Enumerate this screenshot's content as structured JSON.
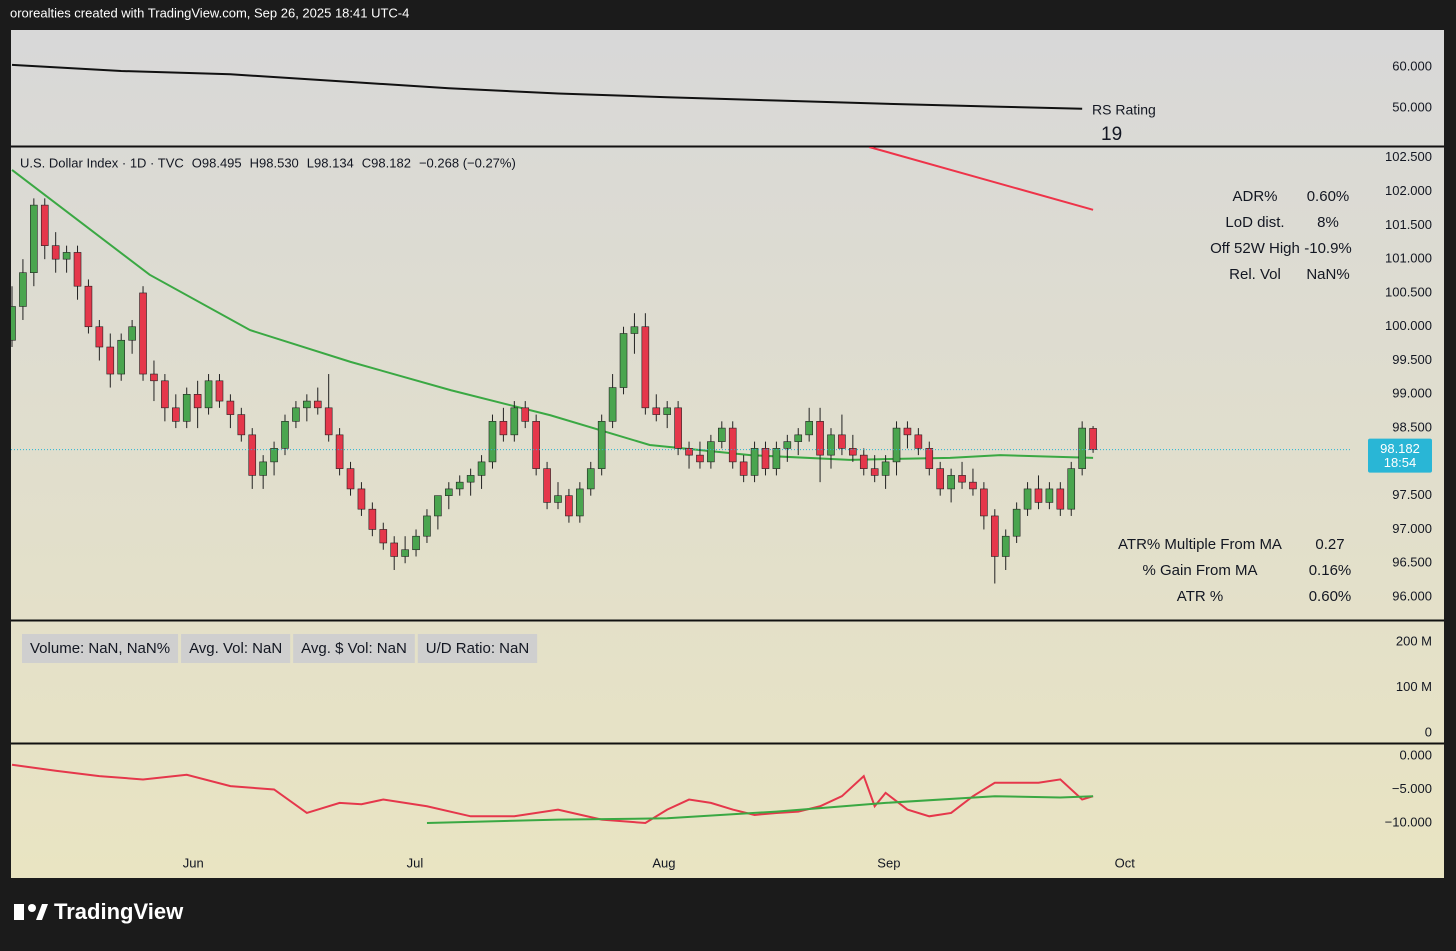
{
  "header": "ororealties created with TradingView.com, Sep 26, 2025 18:41 UTC-4",
  "footer_logo": "TradingView",
  "chart_data": [
    {
      "type": "line",
      "ylim": [
        40.7,
        69.0
      ],
      "yticks": [
        {
          "value": 60,
          "label": "60.000"
        },
        {
          "value": 50,
          "label": "50.000"
        }
      ],
      "series": [
        {
          "name": "RS Rating",
          "color": "#111111",
          "x": [
            0,
            10,
            20,
            30,
            40,
            50,
            60,
            70,
            80,
            90,
            98
          ],
          "values": [
            60.5,
            59.0,
            58.2,
            56.5,
            54.8,
            53.5,
            52.6,
            51.8,
            51.0,
            50.3,
            49.8
          ]
        }
      ],
      "rating": 19
    },
    {
      "type": "candlestick",
      "legend": {
        "symbol": "U.S. Dollar Index · 1D · TVC",
        "open": "O98.495",
        "high": "H98.530",
        "low": "L98.134",
        "close": "C98.182",
        "change": "−0.268 (−0.27%)"
      },
      "up_color": "#4aa54f",
      "down_color": "#e5374b",
      "ylim": [
        95.66,
        102.66
      ],
      "yticks": [
        {
          "value": 102.5,
          "label": "102.500"
        },
        {
          "value": 102,
          "label": "102.000"
        },
        {
          "value": 101.5,
          "label": "101.500"
        },
        {
          "value": 101,
          "label": "101.000"
        },
        {
          "value": 100.5,
          "label": "100.500"
        },
        {
          "value": 100,
          "label": "100.000"
        },
        {
          "value": 99.5,
          "label": "99.500"
        },
        {
          "value": 99,
          "label": "99.000"
        },
        {
          "value": 98.5,
          "label": "98.500"
        },
        {
          "value": 98,
          "label": "98.000"
        },
        {
          "value": 97.5,
          "label": "97.500"
        },
        {
          "value": 97,
          "label": "97.000"
        },
        {
          "value": 96.5,
          "label": "96.500"
        },
        {
          "value": 96,
          "label": "96.000"
        }
      ],
      "xticks": [
        {
          "value": 16.6,
          "label": "Jun"
        },
        {
          "value": 36.9,
          "label": "Jul"
        },
        {
          "value": 59.7,
          "label": "Aug"
        },
        {
          "value": 80.3,
          "label": "Sep"
        },
        {
          "value": 101.9,
          "label": "Oct"
        }
      ],
      "last_price": 98.182,
      "countdown": "18:54",
      "candles": [
        [
          99.8,
          100.6,
          99.7,
          100.3
        ],
        [
          100.3,
          101.0,
          100.1,
          100.8
        ],
        [
          100.8,
          101.9,
          100.6,
          101.8
        ],
        [
          101.8,
          101.9,
          101.0,
          101.2
        ],
        [
          101.2,
          101.4,
          100.8,
          101.0
        ],
        [
          101.0,
          101.2,
          100.8,
          101.1
        ],
        [
          101.1,
          101.2,
          100.4,
          100.6
        ],
        [
          100.6,
          100.7,
          99.9,
          100.0
        ],
        [
          100.0,
          100.1,
          99.5,
          99.7
        ],
        [
          99.7,
          99.9,
          99.1,
          99.3
        ],
        [
          99.3,
          99.9,
          99.2,
          99.8
        ],
        [
          99.8,
          100.1,
          99.6,
          100.0
        ],
        [
          100.5,
          100.6,
          99.2,
          99.3
        ],
        [
          99.3,
          99.5,
          98.9,
          99.2
        ],
        [
          99.2,
          99.3,
          98.6,
          98.8
        ],
        [
          98.8,
          99.0,
          98.5,
          98.6
        ],
        [
          98.6,
          99.1,
          98.5,
          99.0
        ],
        [
          99.0,
          99.2,
          98.5,
          98.8
        ],
        [
          98.8,
          99.3,
          98.7,
          99.2
        ],
        [
          99.2,
          99.3,
          98.8,
          98.9
        ],
        [
          98.9,
          99.0,
          98.5,
          98.7
        ],
        [
          98.7,
          98.8,
          98.3,
          98.4
        ],
        [
          98.4,
          98.5,
          97.6,
          97.8
        ],
        [
          97.8,
          98.1,
          97.6,
          98.0
        ],
        [
          98.0,
          98.3,
          97.8,
          98.2
        ],
        [
          98.2,
          98.7,
          98.1,
          98.6
        ],
        [
          98.6,
          98.9,
          98.5,
          98.8
        ],
        [
          98.8,
          99.0,
          98.6,
          98.9
        ],
        [
          98.9,
          99.1,
          98.7,
          98.8
        ],
        [
          98.8,
          99.3,
          98.3,
          98.4
        ],
        [
          98.4,
          98.5,
          97.8,
          97.9
        ],
        [
          97.9,
          98.0,
          97.5,
          97.6
        ],
        [
          97.6,
          97.7,
          97.2,
          97.3
        ],
        [
          97.3,
          97.4,
          96.9,
          97.0
        ],
        [
          97.0,
          97.1,
          96.7,
          96.8
        ],
        [
          96.8,
          96.9,
          96.4,
          96.6
        ],
        [
          96.6,
          96.9,
          96.5,
          96.7
        ],
        [
          96.7,
          97.0,
          96.6,
          96.9
        ],
        [
          96.9,
          97.3,
          96.8,
          97.2
        ],
        [
          97.2,
          97.5,
          97.0,
          97.5
        ],
        [
          97.5,
          97.7,
          97.3,
          97.6
        ],
        [
          97.6,
          97.8,
          97.5,
          97.7
        ],
        [
          97.7,
          97.9,
          97.5,
          97.8
        ],
        [
          97.8,
          98.1,
          97.6,
          98.0
        ],
        [
          98.0,
          98.7,
          97.9,
          98.6
        ],
        [
          98.6,
          98.8,
          98.3,
          98.4
        ],
        [
          98.4,
          98.9,
          98.3,
          98.8
        ],
        [
          98.8,
          98.9,
          98.5,
          98.6
        ],
        [
          98.6,
          98.7,
          97.8,
          97.9
        ],
        [
          97.9,
          98.0,
          97.3,
          97.4
        ],
        [
          97.4,
          97.7,
          97.3,
          97.5
        ],
        [
          97.5,
          97.6,
          97.1,
          97.2
        ],
        [
          97.2,
          97.7,
          97.1,
          97.6
        ],
        [
          97.6,
          98.0,
          97.5,
          97.9
        ],
        [
          97.9,
          98.7,
          97.8,
          98.6
        ],
        [
          98.6,
          99.3,
          98.5,
          99.1
        ],
        [
          99.1,
          100.0,
          99.0,
          99.9
        ],
        [
          99.9,
          100.2,
          99.6,
          100.0
        ],
        [
          100.0,
          100.2,
          98.7,
          98.8
        ],
        [
          98.8,
          99.0,
          98.6,
          98.7
        ],
        [
          98.7,
          98.9,
          98.5,
          98.8
        ],
        [
          98.8,
          98.9,
          98.1,
          98.2
        ],
        [
          98.2,
          98.3,
          97.9,
          98.1
        ],
        [
          98.1,
          98.3,
          97.9,
          98.0
        ],
        [
          98.0,
          98.4,
          97.9,
          98.3
        ],
        [
          98.3,
          98.6,
          98.2,
          98.5
        ],
        [
          98.5,
          98.6,
          97.9,
          98.0
        ],
        [
          98.0,
          98.1,
          97.7,
          97.8
        ],
        [
          97.8,
          98.3,
          97.7,
          98.2
        ],
        [
          98.2,
          98.3,
          97.8,
          97.9
        ],
        [
          97.9,
          98.3,
          97.8,
          98.2
        ],
        [
          98.2,
          98.4,
          98.0,
          98.3
        ],
        [
          98.3,
          98.5,
          98.1,
          98.4
        ],
        [
          98.4,
          98.8,
          98.3,
          98.6
        ],
        [
          98.6,
          98.8,
          97.7,
          98.1
        ],
        [
          98.1,
          98.5,
          97.9,
          98.4
        ],
        [
          98.4,
          98.7,
          98.1,
          98.2
        ],
        [
          98.2,
          98.4,
          98.0,
          98.1
        ],
        [
          98.1,
          98.2,
          97.8,
          97.9
        ],
        [
          97.9,
          98.1,
          97.7,
          97.8
        ],
        [
          97.8,
          98.1,
          97.6,
          98.0
        ],
        [
          98.0,
          98.6,
          97.8,
          98.5
        ],
        [
          98.5,
          98.6,
          98.2,
          98.4
        ],
        [
          98.4,
          98.5,
          98.1,
          98.2
        ],
        [
          98.2,
          98.3,
          97.8,
          97.9
        ],
        [
          97.9,
          98.0,
          97.5,
          97.6
        ],
        [
          97.6,
          97.9,
          97.4,
          97.8
        ],
        [
          97.8,
          98.0,
          97.6,
          97.7
        ],
        [
          97.7,
          97.9,
          97.5,
          97.6
        ],
        [
          97.6,
          97.7,
          97.0,
          97.2
        ],
        [
          97.2,
          97.3,
          96.2,
          96.6
        ],
        [
          96.6,
          97.0,
          96.4,
          96.9
        ],
        [
          96.9,
          97.4,
          96.8,
          97.3
        ],
        [
          97.3,
          97.7,
          97.2,
          97.6
        ],
        [
          97.6,
          97.8,
          97.3,
          97.4
        ],
        [
          97.4,
          97.7,
          97.3,
          97.6
        ],
        [
          97.6,
          97.7,
          97.2,
          97.3
        ],
        [
          97.3,
          98.0,
          97.2,
          97.9
        ],
        [
          97.9,
          98.6,
          97.8,
          98.5
        ],
        [
          98.495,
          98.53,
          98.134,
          98.182
        ]
      ],
      "lines": [
        {
          "color": "#3aa843",
          "x": [
            0,
            12.6,
            21.8,
            31,
            40.2,
            49.3,
            58.4,
            67.6,
            76.7,
            85.9,
            90.5,
            99
          ],
          "values": [
            102.32,
            100.77,
            99.95,
            99.48,
            99.06,
            98.69,
            98.25,
            98.1,
            98.03,
            98.06,
            98.1,
            98.06
          ]
        },
        {
          "color": "#ee3349",
          "x": [
            78.5,
            99
          ],
          "values": [
            102.66,
            101.73
          ]
        }
      ],
      "stats_top": [
        [
          "ADR%",
          "0.60%"
        ],
        [
          "LoD dist.",
          "8%"
        ],
        [
          "Off 52W High",
          "-10.9%"
        ],
        [
          "Rel. Vol",
          "NaN%"
        ]
      ],
      "stats_bottom": [
        [
          "ATR% Multiple From MA",
          "0.27"
        ],
        [
          "% Gain From MA",
          "0.16%"
        ],
        [
          "ATR %",
          "0.60%"
        ]
      ]
    },
    {
      "type": "volume",
      "ylim": [
        -22000000,
        246000000
      ],
      "yticks": [
        {
          "value": 200000000,
          "label": "200 M"
        },
        {
          "value": 100000000,
          "label": "100 M"
        },
        0
      ],
      "stats": [
        "Volume: NaN, NaN%",
        "Avg. Vol: NaN",
        "Avg. $ Vol: NaN",
        "U/D Ratio: NaN"
      ]
    },
    {
      "type": "line",
      "ylim": [
        -14.03,
        1.79
      ],
      "yticks": [
        {
          "value": 0,
          "label": "0.000"
        },
        {
          "value": -5,
          "label": "−5.000"
        },
        {
          "value": -10,
          "label": "−10.000"
        }
      ],
      "series": [
        {
          "color": "#e5374b",
          "x": [
            0,
            4,
            8,
            12,
            16,
            20,
            24,
            27,
            30,
            32,
            34,
            38,
            42,
            46,
            50,
            54,
            58,
            60,
            62,
            64,
            66,
            68,
            70,
            72,
            74,
            76,
            78,
            79,
            80,
            82,
            84,
            86,
            88,
            90,
            92,
            94,
            96,
            98,
            99
          ],
          "values": [
            -1.3,
            -2.2,
            -3,
            -3.5,
            -2.8,
            -4.5,
            -5,
            -8.5,
            -7,
            -7.2,
            -6.5,
            -7.5,
            -9,
            -9,
            -8,
            -9.5,
            -10,
            -8,
            -6.5,
            -7,
            -8,
            -8.8,
            -8.5,
            -8.3,
            -7.5,
            -6,
            -3,
            -7.5,
            -5.5,
            -8,
            -9,
            -8.5,
            -6,
            -4,
            -4,
            -4,
            -3.5,
            -6.5,
            -6
          ]
        },
        {
          "color": "#3aa843",
          "x": [
            38,
            50,
            60,
            70,
            80,
            90,
            96,
            99
          ],
          "values": [
            -10,
            -9.5,
            -9.3,
            -8.3,
            -7,
            -6,
            -6.2,
            -6
          ]
        }
      ]
    }
  ]
}
